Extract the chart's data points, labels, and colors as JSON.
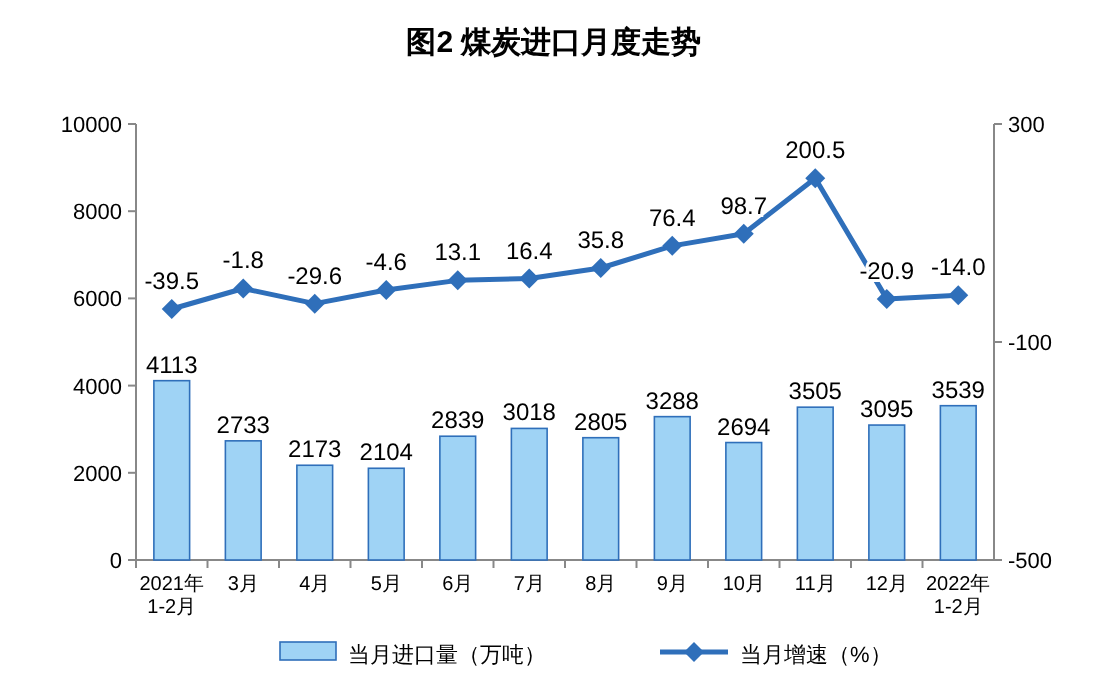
{
  "chart_data": {
    "type": "bar",
    "title": "图2  煤炭进口月度走势",
    "categories": [
      "2021年\n1-2月",
      "3月",
      "4月",
      "5月",
      "6月",
      "7月",
      "8月",
      "9月",
      "10月",
      "11月",
      "12月",
      "2022年\n1-2月"
    ],
    "series": [
      {
        "name": "当月进口量（万吨）",
        "color": "#9fd3f5",
        "values": [
          4113,
          2733,
          2173,
          2104,
          2839,
          3018,
          2805,
          3288,
          2694,
          3505,
          3095,
          3539
        ]
      },
      {
        "name": "当月增速（%）",
        "type": "line",
        "axis": "y2",
        "color": "#2f6fba",
        "values": [
          -39.5,
          -1.8,
          -29.6,
          -4.6,
          13.1,
          16.4,
          35.8,
          76.4,
          98.7,
          200.5,
          -20.9,
          -14.0
        ],
        "value_labels": [
          "-39.5",
          "-1.8",
          "-29.6",
          "-4.6",
          "13.1",
          "16.4",
          "35.8",
          "76.4",
          "98.7",
          "200.5",
          "-20.9",
          "-14.0"
        ]
      }
    ],
    "ylim": [
      0,
      10000
    ],
    "yticks": [
      0,
      2000,
      4000,
      6000,
      8000,
      10000
    ],
    "y2lim": [
      -500,
      300
    ],
    "y2ticks": [
      -500,
      -100,
      300
    ],
    "data_labels": true,
    "marker": "diamond",
    "grid": false,
    "legend": "bottom"
  }
}
